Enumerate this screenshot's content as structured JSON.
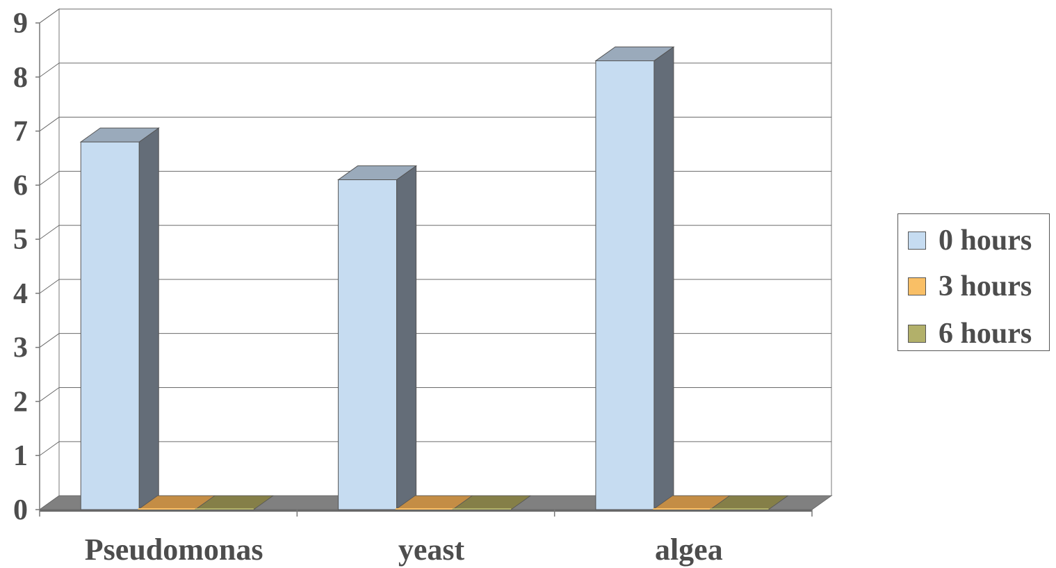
{
  "chart_data": {
    "type": "bar",
    "categories": [
      "Pseudomonas",
      "yeast",
      "algea"
    ],
    "series": [
      {
        "name": "0 hours",
        "values": [
          6.8,
          6.1,
          8.3
        ],
        "color": "#c6dcf1",
        "side": "#646d78",
        "top": "#9aaabb"
      },
      {
        "name": "3 hours",
        "values": [
          0,
          0,
          0
        ],
        "color": "#f9bf66",
        "side": "#a77a36",
        "top": "#c48d45"
      },
      {
        "name": "6 hours",
        "values": [
          0,
          0,
          0
        ],
        "color": "#b2b06a",
        "side": "#6f6d3c",
        "top": "#857f48"
      }
    ],
    "y_ticks": [
      "0",
      "1",
      "2",
      "3",
      "4",
      "5",
      "6",
      "7",
      "8",
      "9"
    ],
    "ylim": [
      0,
      9
    ],
    "grid": true,
    "legend_position": "right"
  }
}
